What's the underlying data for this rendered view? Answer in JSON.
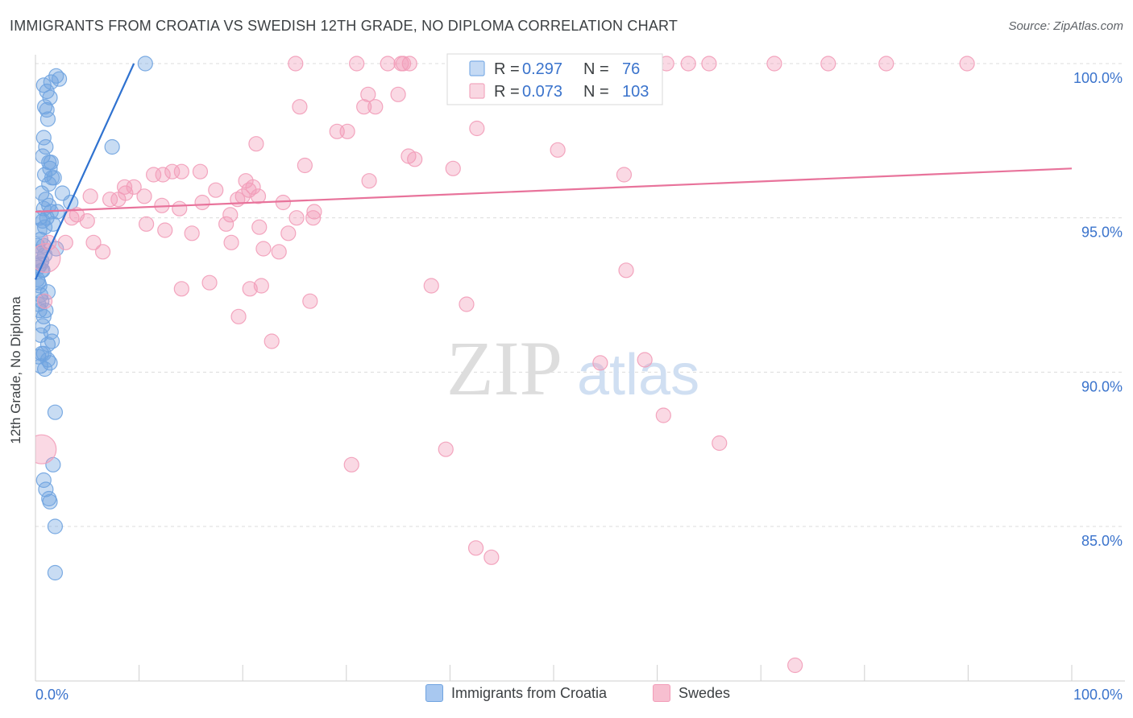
{
  "title": "IMMIGRANTS FROM CROATIA VS SWEDISH 12TH GRADE, NO DIPLOMA CORRELATION CHART",
  "source": "Source: ZipAtlas.com",
  "watermark": {
    "zip": "ZIP",
    "atlas": "atlas"
  },
  "legend_top": [
    {
      "r_label": "R =",
      "r_value": "0.297",
      "n_label": "N =",
      "n_value": "76",
      "color": "#7eaee6"
    },
    {
      "r_label": "R =",
      "r_value": "0.073",
      "n_label": "N =",
      "n_value": "103",
      "color": "#f2a7bf"
    }
  ],
  "legend_bottom": [
    {
      "label": "Immigrants from Croatia",
      "color": "#a8c8f0"
    },
    {
      "label": "Swedes",
      "color": "#f7bfd0"
    }
  ],
  "chart_data": {
    "type": "scatter",
    "title": "IMMIGRANTS FROM CROATIA VS SWEDISH 12TH GRADE, NO DIPLOMA CORRELATION CHART",
    "xlabel": "",
    "ylabel": "12th Grade, No Diploma",
    "xlim": [
      0,
      100
    ],
    "ylim": [
      80.5,
      100.5
    ],
    "x_tick_labels": [
      "0.0%",
      "100.0%"
    ],
    "y_ticks": [
      85,
      90,
      95,
      100
    ],
    "y_tick_labels": [
      "85.0%",
      "90.0%",
      "95.0%",
      "100.0%"
    ],
    "grid": true,
    "series": [
      {
        "name": "Immigrants from Croatia",
        "color": "#6fa3e0",
        "line_color": "#2f72d0",
        "trend": {
          "x": [
            0,
            9.5
          ],
          "y": [
            93.0,
            100.0
          ]
        },
        "points": [
          [
            2.0,
            99.6
          ],
          [
            1.5,
            99.4
          ],
          [
            0.8,
            99.3
          ],
          [
            1.1,
            99.1
          ],
          [
            1.4,
            98.9
          ],
          [
            0.9,
            98.6
          ],
          [
            1.1,
            98.5
          ],
          [
            1.2,
            98.2
          ],
          [
            0.8,
            97.6
          ],
          [
            1.0,
            97.3
          ],
          [
            0.7,
            97.0
          ],
          [
            1.5,
            96.8
          ],
          [
            1.4,
            96.6
          ],
          [
            0.9,
            96.4
          ],
          [
            1.6,
            96.3
          ],
          [
            1.3,
            96.1
          ],
          [
            0.6,
            95.8
          ],
          [
            2.6,
            95.8
          ],
          [
            1.0,
            95.6
          ],
          [
            1.3,
            95.4
          ],
          [
            0.8,
            95.3
          ],
          [
            1.5,
            95.2
          ],
          [
            2.1,
            95.2
          ],
          [
            0.4,
            95.0
          ],
          [
            1.7,
            94.8
          ],
          [
            0.9,
            94.7
          ],
          [
            0.5,
            94.3
          ],
          [
            0.8,
            94.1
          ],
          [
            0.4,
            93.9
          ],
          [
            0.6,
            93.6
          ],
          [
            0.3,
            93.4
          ],
          [
            0.7,
            93.3
          ],
          [
            0.2,
            93.0
          ],
          [
            0.4,
            92.8
          ],
          [
            1.2,
            92.6
          ],
          [
            0.5,
            92.5
          ],
          [
            0.6,
            92.3
          ],
          [
            0.4,
            92.0
          ],
          [
            0.8,
            91.8
          ],
          [
            0.7,
            91.5
          ],
          [
            1.5,
            91.3
          ],
          [
            1.2,
            90.9
          ],
          [
            0.3,
            90.5
          ],
          [
            1.4,
            90.3
          ],
          [
            0.5,
            90.2
          ],
          [
            0.9,
            90.1
          ],
          [
            1.9,
            88.7
          ],
          [
            1.7,
            87.0
          ],
          [
            0.8,
            86.5
          ],
          [
            1.0,
            86.2
          ],
          [
            1.3,
            85.9
          ],
          [
            1.4,
            85.8
          ],
          [
            1.9,
            85.0
          ],
          [
            1.9,
            83.5
          ],
          [
            10.6,
            100.0
          ],
          [
            7.4,
            97.3
          ],
          [
            3.4,
            95.5
          ],
          [
            0.2,
            94.1
          ],
          [
            0.6,
            90.6
          ],
          [
            0.3,
            92.9
          ],
          [
            2.3,
            99.5
          ],
          [
            1.8,
            96.3
          ],
          [
            0.5,
            93.5
          ],
          [
            1.0,
            92.0
          ],
          [
            0.7,
            94.9
          ],
          [
            1.1,
            95.0
          ],
          [
            0.9,
            93.8
          ],
          [
            1.2,
            90.4
          ],
          [
            0.5,
            91.2
          ],
          [
            1.6,
            91.0
          ],
          [
            0.4,
            94.6
          ],
          [
            2.0,
            94.0
          ],
          [
            0.3,
            92.2
          ],
          [
            1.3,
            96.8
          ],
          [
            0.6,
            93.3
          ],
          [
            0.8,
            90.6
          ]
        ]
      },
      {
        "name": "Swedes",
        "color": "#f29cb8",
        "line_color": "#e8739b",
        "trend": {
          "x": [
            0,
            100
          ],
          "y": [
            95.2,
            96.6
          ]
        },
        "points": [
          [
            25.1,
            100.0
          ],
          [
            31.0,
            100.0
          ],
          [
            34.0,
            100.0
          ],
          [
            35.3,
            100.0
          ],
          [
            36.1,
            100.0
          ],
          [
            40.7,
            100.0
          ],
          [
            41.0,
            100.0
          ],
          [
            42.6,
            100.0
          ],
          [
            43.1,
            100.0
          ],
          [
            45.7,
            100.0
          ],
          [
            47.4,
            100.0
          ],
          [
            52.1,
            100.0
          ],
          [
            55.5,
            100.0
          ],
          [
            60.9,
            100.0
          ],
          [
            63.0,
            100.0
          ],
          [
            65.0,
            100.0
          ],
          [
            71.3,
            100.0
          ],
          [
            76.5,
            100.0
          ],
          [
            82.1,
            100.0
          ],
          [
            89.9,
            100.0
          ],
          [
            35.5,
            100.0
          ],
          [
            48.0,
            100.0
          ],
          [
            32.1,
            99.0
          ],
          [
            35.0,
            99.0
          ],
          [
            25.5,
            98.6
          ],
          [
            31.7,
            98.6
          ],
          [
            32.8,
            98.6
          ],
          [
            42.6,
            97.9
          ],
          [
            29.1,
            97.8
          ],
          [
            30.1,
            97.8
          ],
          [
            21.3,
            97.4
          ],
          [
            50.4,
            97.2
          ],
          [
            36.0,
            97.0
          ],
          [
            36.6,
            96.9
          ],
          [
            26.0,
            96.7
          ],
          [
            40.3,
            96.6
          ],
          [
            13.2,
            96.5
          ],
          [
            14.1,
            96.5
          ],
          [
            15.9,
            96.5
          ],
          [
            11.4,
            96.4
          ],
          [
            12.3,
            96.4
          ],
          [
            56.8,
            96.4
          ],
          [
            20.3,
            96.2
          ],
          [
            32.2,
            96.2
          ],
          [
            8.6,
            96.0
          ],
          [
            21.0,
            96.0
          ],
          [
            20.6,
            95.9
          ],
          [
            17.4,
            95.9
          ],
          [
            20.0,
            95.7
          ],
          [
            21.5,
            95.7
          ],
          [
            5.3,
            95.7
          ],
          [
            10.5,
            95.7
          ],
          [
            7.2,
            95.6
          ],
          [
            8.0,
            95.6
          ],
          [
            19.5,
            95.6
          ],
          [
            23.9,
            95.5
          ],
          [
            16.1,
            95.5
          ],
          [
            12.2,
            95.4
          ],
          [
            13.9,
            95.3
          ],
          [
            26.9,
            95.2
          ],
          [
            18.8,
            95.1
          ],
          [
            25.2,
            95.0
          ],
          [
            26.8,
            95.0
          ],
          [
            5.0,
            94.9
          ],
          [
            21.6,
            94.7
          ],
          [
            12.5,
            94.6
          ],
          [
            24.4,
            94.5
          ],
          [
            18.9,
            94.2
          ],
          [
            22.0,
            94.0
          ],
          [
            1.3,
            94.2
          ],
          [
            2.9,
            94.2
          ],
          [
            1.0,
            93.7
          ],
          [
            57.0,
            93.3
          ],
          [
            16.8,
            92.9
          ],
          [
            20.7,
            92.7
          ],
          [
            21.8,
            92.8
          ],
          [
            38.2,
            92.8
          ],
          [
            26.5,
            92.3
          ],
          [
            41.6,
            92.2
          ],
          [
            19.6,
            91.8
          ],
          [
            22.8,
            91.0
          ],
          [
            0.9,
            92.3
          ],
          [
            54.5,
            90.3
          ],
          [
            58.8,
            90.4
          ],
          [
            60.6,
            88.6
          ],
          [
            66.0,
            87.7
          ],
          [
            39.6,
            87.5
          ],
          [
            30.5,
            87.0
          ],
          [
            0.6,
            87.5
          ],
          [
            44.0,
            84.0
          ],
          [
            42.5,
            84.3
          ],
          [
            73.3,
            80.5
          ],
          [
            4.0,
            95.1
          ],
          [
            5.6,
            94.2
          ],
          [
            6.5,
            93.9
          ],
          [
            8.7,
            95.8
          ],
          [
            10.7,
            94.8
          ],
          [
            15.1,
            94.5
          ],
          [
            18.4,
            94.8
          ],
          [
            23.5,
            93.9
          ],
          [
            14.1,
            92.7
          ],
          [
            9.5,
            96.0
          ],
          [
            3.5,
            95.0
          ]
        ]
      }
    ]
  }
}
